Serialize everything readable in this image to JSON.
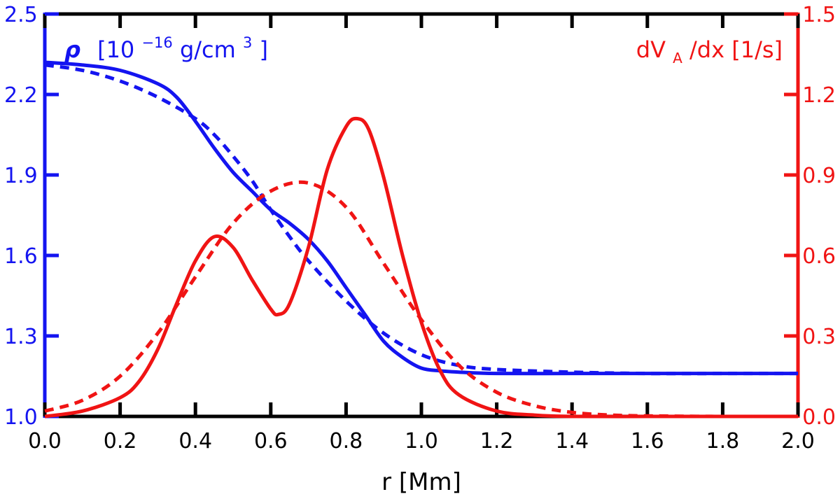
{
  "chart_data": {
    "type": "line",
    "x_axis": {
      "label": "r [Mm]",
      "range": [
        0.0,
        2.0
      ],
      "ticks": [
        "0.0",
        "0.2",
        "0.4",
        "0.6",
        "0.8",
        "1.0",
        "1.2",
        "1.4",
        "1.6",
        "1.8",
        "2.0"
      ],
      "tick_values": [
        0.0,
        0.2,
        0.4,
        0.6,
        0.8,
        1.0,
        1.2,
        1.4,
        1.6,
        1.8,
        2.0
      ]
    },
    "y_left": {
      "label_prefix": "ρ",
      "label_unit_open": "[10",
      "label_exponent": "−16",
      "label_unit_mid": " g/cm",
      "label_unit_exp": "3",
      "label_unit_close": "]",
      "range": [
        1.0,
        2.5
      ],
      "ticks": [
        "1.0",
        "1.3",
        "1.6",
        "1.9",
        "2.2",
        "2.5"
      ],
      "tick_values": [
        1.0,
        1.3,
        1.6,
        1.9,
        2.2,
        2.5
      ],
      "color": "#1414f0"
    },
    "y_right": {
      "label_main": "dV",
      "label_sub": "A",
      "label_rest": "/dx [1/s]",
      "range": [
        0.0,
        1.5
      ],
      "ticks": [
        "0.0",
        "0.3",
        "0.6",
        "0.9",
        "1.2",
        "1.5"
      ],
      "tick_values": [
        0.0,
        0.3,
        0.6,
        0.9,
        1.2,
        1.5
      ],
      "color": "#f01414"
    },
    "series": [
      {
        "name": "density (solid)",
        "axis": "left",
        "style": "solid",
        "color": "#1414f0",
        "x": [
          0.0,
          0.1,
          0.2,
          0.3,
          0.35,
          0.4,
          0.45,
          0.5,
          0.55,
          0.6,
          0.65,
          0.7,
          0.75,
          0.8,
          0.85,
          0.9,
          0.95,
          1.0,
          1.05,
          1.1,
          1.2,
          1.4,
          1.6,
          1.8,
          2.0
        ],
        "y": [
          2.32,
          2.31,
          2.29,
          2.24,
          2.19,
          2.1,
          2.0,
          1.91,
          1.84,
          1.77,
          1.72,
          1.66,
          1.58,
          1.48,
          1.38,
          1.28,
          1.22,
          1.18,
          1.17,
          1.165,
          1.16,
          1.16,
          1.16,
          1.16,
          1.16
        ]
      },
      {
        "name": "density (dashed)",
        "axis": "left",
        "style": "dashed",
        "color": "#1414f0",
        "x": [
          0.0,
          0.1,
          0.2,
          0.3,
          0.4,
          0.45,
          0.5,
          0.55,
          0.6,
          0.65,
          0.7,
          0.8,
          0.9,
          1.0,
          1.1,
          1.2,
          1.4,
          1.6,
          1.8,
          2.0
        ],
        "y": [
          2.31,
          2.29,
          2.25,
          2.19,
          2.11,
          2.05,
          1.97,
          1.88,
          1.77,
          1.67,
          1.58,
          1.43,
          1.31,
          1.23,
          1.19,
          1.175,
          1.165,
          1.16,
          1.16,
          1.16
        ]
      },
      {
        "name": "dVA/dx (solid)",
        "axis": "right",
        "style": "solid",
        "color": "#f01414",
        "x": [
          0.0,
          0.1,
          0.2,
          0.25,
          0.3,
          0.35,
          0.4,
          0.45,
          0.5,
          0.55,
          0.6,
          0.62,
          0.65,
          0.7,
          0.75,
          0.8,
          0.83,
          0.86,
          0.9,
          0.95,
          1.0,
          1.05,
          1.1,
          1.2,
          1.3,
          1.4,
          1.6,
          1.8,
          2.0
        ],
        "y": [
          0.0,
          0.02,
          0.07,
          0.13,
          0.25,
          0.42,
          0.58,
          0.67,
          0.63,
          0.51,
          0.4,
          0.38,
          0.42,
          0.63,
          0.92,
          1.08,
          1.11,
          1.07,
          0.89,
          0.6,
          0.35,
          0.17,
          0.08,
          0.02,
          0.005,
          0.0,
          0.0,
          0.0,
          0.0
        ]
      },
      {
        "name": "dVA/dx (dashed)",
        "axis": "right",
        "style": "dashed",
        "color": "#f01414",
        "x": [
          0.0,
          0.1,
          0.2,
          0.3,
          0.4,
          0.5,
          0.6,
          0.7,
          0.8,
          0.9,
          1.0,
          1.1,
          1.2,
          1.3,
          1.4,
          1.5,
          1.6,
          1.8,
          2.0
        ],
        "y": [
          0.02,
          0.06,
          0.15,
          0.31,
          0.52,
          0.72,
          0.84,
          0.87,
          0.78,
          0.57,
          0.36,
          0.19,
          0.09,
          0.04,
          0.015,
          0.005,
          0.002,
          0.0,
          0.0
        ]
      }
    ]
  }
}
